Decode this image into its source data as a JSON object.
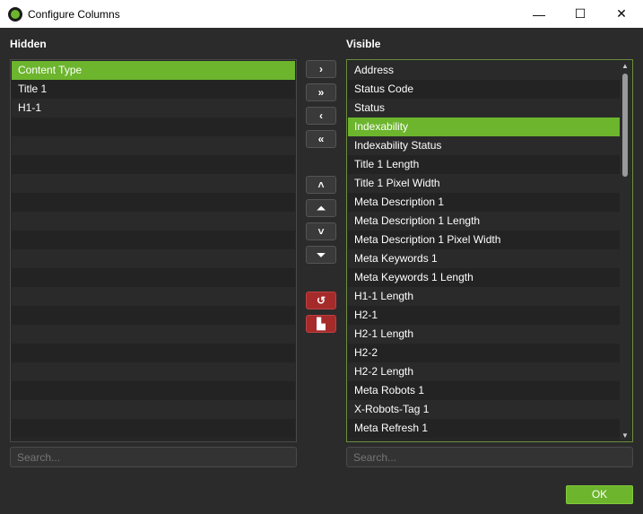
{
  "window": {
    "title": "Configure Columns",
    "minimize": "—",
    "maximize": "☐",
    "close": "✕"
  },
  "hidden": {
    "label": "Hidden",
    "items": [
      "Content Type",
      "Title 1",
      "H1-1"
    ],
    "selected": 0,
    "search_placeholder": "Search..."
  },
  "visible": {
    "label": "Visible",
    "items": [
      "Address",
      "Status Code",
      "Status",
      "Indexability",
      "Indexability Status",
      "Title 1 Length",
      "Title 1 Pixel Width",
      "Meta Description 1",
      "Meta Description 1 Length",
      "Meta Description 1 Pixel Width",
      "Meta Keywords 1",
      "Meta Keywords 1 Length",
      "H1-1 Length",
      "H2-1",
      "H2-1 Length",
      "H2-2",
      "H2-2 Length",
      "Meta Robots 1",
      "X-Robots-Tag 1",
      "Meta Refresh 1"
    ],
    "selected": 3,
    "search_placeholder": "Search..."
  },
  "buttons": {
    "move_right": "›",
    "move_all_right": "»",
    "move_left": "‹",
    "move_all_left": "«",
    "move_up": "˄",
    "move_top": "⏶",
    "move_down": "˅",
    "move_bottom": "⏷",
    "restore": "↺",
    "factory": "▙"
  },
  "ok_label": "OK",
  "accent": "#6cb52d"
}
